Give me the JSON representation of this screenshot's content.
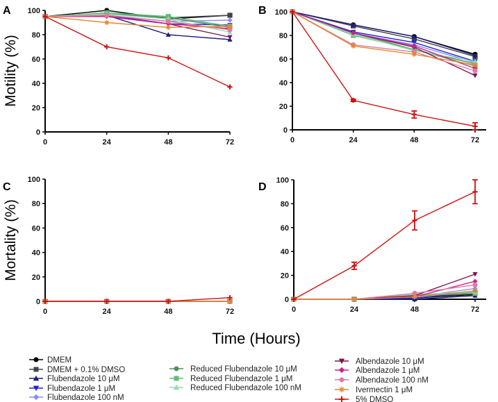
{
  "chart_data": {
    "type": "line",
    "xlabel": "Time (Hours)",
    "ylabels": {
      "motility": "Motility (%)",
      "mortality": "Mortality (%)"
    },
    "x": [
      0,
      24,
      48,
      72
    ],
    "x_ticks": [
      "0",
      "24",
      "48",
      "72"
    ],
    "y_ticks": [
      "0",
      "20",
      "40",
      "60",
      "80",
      "100"
    ],
    "ylim": [
      0,
      100
    ],
    "legend_placement": "bottom",
    "series_meta": [
      {
        "name": "DMEM",
        "color": "#000000",
        "marker": "circle"
      },
      {
        "name": "DMEM + 0.1% DMSO",
        "color": "#444444",
        "marker": "square"
      },
      {
        "name": "Flubendazole 10 μM",
        "color": "#1c1c80",
        "marker": "triangle-up"
      },
      {
        "name": "Flubendazole 1 μM",
        "color": "#1f1fe0",
        "marker": "triangle-down"
      },
      {
        "name": "Flubendazole 100 nM",
        "color": "#8c8cf0",
        "marker": "diamond"
      },
      {
        "name": "Reduced Flubendazole 10 μM",
        "color": "#4e8f5e",
        "marker": "circle"
      },
      {
        "name": "Reduced Flubendazole 1 μM",
        "color": "#66bb77",
        "marker": "square"
      },
      {
        "name": "Reduced Flubendazole 100 nM",
        "color": "#8de0b0",
        "marker": "triangle-up"
      },
      {
        "name": "Albendazole 10 μM",
        "color": "#7a1450",
        "marker": "triangle-down"
      },
      {
        "name": "Albendazole 1 μM",
        "color": "#cc2288",
        "marker": "diamond"
      },
      {
        "name": "Albendazole 100 nM",
        "color": "#e07aa0",
        "marker": "circle"
      },
      {
        "name": "Ivermectin 1 μM",
        "color": "#e08a30",
        "marker": "star"
      },
      {
        "name": "5% DMSO",
        "color": "#d01010",
        "marker": "plus"
      }
    ],
    "panels": [
      {
        "label": "A",
        "measure": "motility",
        "values": [
          [
            95,
            100,
            93,
            96
          ],
          [
            95,
            97,
            94,
            96
          ],
          [
            95,
            96,
            80,
            76
          ],
          [
            95,
            96,
            89,
            88
          ],
          [
            95,
            96,
            91,
            92
          ],
          [
            95,
            98,
            94,
            86
          ],
          [
            95,
            98,
            95,
            87
          ],
          [
            95,
            97,
            93,
            82
          ],
          [
            95,
            95,
            89,
            78
          ],
          [
            95,
            95,
            89,
            85
          ],
          [
            95,
            96,
            91,
            84
          ],
          [
            95,
            90,
            86,
            87
          ],
          [
            95,
            70,
            61,
            37
          ]
        ]
      },
      {
        "label": "B",
        "measure": "motility",
        "values": [
          [
            100,
            89,
            79,
            64
          ],
          [
            100,
            88,
            77,
            62
          ],
          [
            100,
            89,
            79,
            63
          ],
          [
            100,
            83,
            74,
            58
          ],
          [
            100,
            82,
            72,
            57
          ],
          [
            100,
            82,
            68,
            56
          ],
          [
            100,
            80,
            68,
            54
          ],
          [
            100,
            81,
            67,
            58
          ],
          [
            100,
            82,
            70,
            46
          ],
          [
            100,
            82,
            71,
            52
          ],
          [
            100,
            72,
            66,
            50
          ],
          [
            100,
            71,
            64,
            55
          ],
          [
            100,
            25,
            13,
            3
          ]
        ],
        "error_5pct_dmso": [
          0,
          1,
          3,
          3
        ]
      },
      {
        "label": "C",
        "measure": "mortality",
        "values": [
          [
            0,
            0,
            0,
            0
          ],
          [
            0,
            0,
            0,
            0
          ],
          [
            0,
            0,
            0,
            0
          ],
          [
            0,
            0,
            0,
            0
          ],
          [
            0,
            0,
            0,
            0
          ],
          [
            0,
            0,
            0,
            0
          ],
          [
            0,
            0,
            0,
            0
          ],
          [
            0,
            0,
            0,
            0
          ],
          [
            0,
            0,
            0,
            0
          ],
          [
            0,
            0,
            0,
            0
          ],
          [
            0,
            0,
            0,
            0
          ],
          [
            0,
            0,
            0,
            0
          ],
          [
            0,
            0,
            0,
            3
          ]
        ]
      },
      {
        "label": "D",
        "measure": "mortality",
        "values": [
          [
            0,
            0,
            1,
            4
          ],
          [
            0,
            0,
            1,
            5
          ],
          [
            0,
            0,
            0,
            3
          ],
          [
            0,
            0,
            1,
            6
          ],
          [
            0,
            0,
            2,
            9
          ],
          [
            0,
            0,
            3,
            6
          ],
          [
            0,
            0,
            3,
            5
          ],
          [
            0,
            0,
            4,
            6
          ],
          [
            0,
            0,
            3,
            21
          ],
          [
            0,
            0,
            2,
            15
          ],
          [
            0,
            0,
            5,
            12
          ],
          [
            0,
            0,
            2,
            7
          ],
          [
            0,
            28,
            66,
            90
          ]
        ],
        "error_5pct_dmso": [
          0,
          3,
          8,
          10
        ]
      }
    ]
  }
}
